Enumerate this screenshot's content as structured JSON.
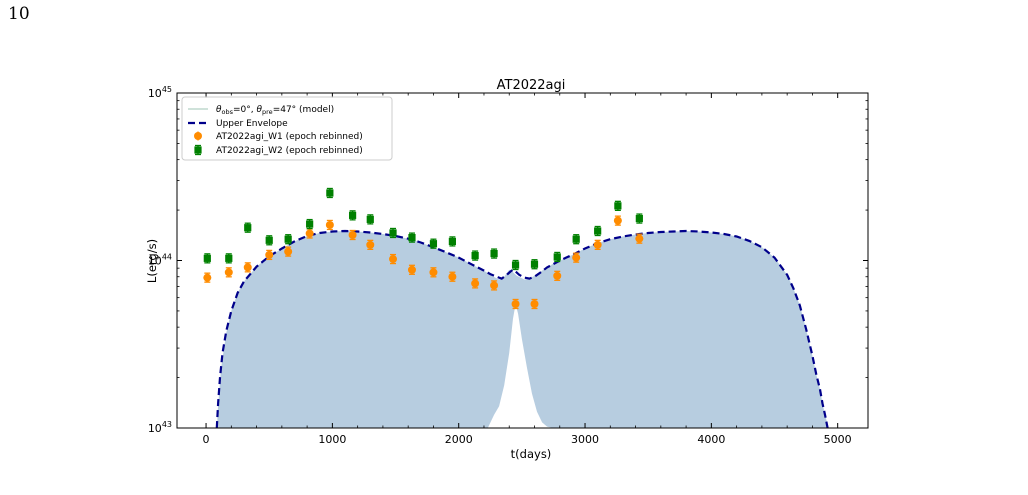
{
  "page": {
    "number": "10"
  },
  "chart_data": {
    "type": "scatter",
    "title": "AT2022agi",
    "xlabel": "t(days)",
    "ylabel": "L(erg/s)",
    "xlim": [
      -230,
      5240
    ],
    "ylim_log10": [
      43,
      45
    ],
    "yscale": "log",
    "x_ticks": [
      0,
      1000,
      2000,
      3000,
      4000,
      5000
    ],
    "x_tick_labels": [
      "0",
      "1000",
      "2000",
      "3000",
      "4000",
      "5000"
    ],
    "y_ticks_log10": [
      43,
      44,
      45
    ],
    "y_tick_base": "10",
    "y_tick_exponents": [
      "43",
      "44",
      "45"
    ],
    "grid": false,
    "legend_position": "top-left",
    "legend": [
      {
        "label": "θobs=0°, θpre=47° (model)",
        "base1": "θ",
        "sub1": "obs",
        "mid": "=0°, ",
        "base2": "θ",
        "sub2": "pre",
        "tail": "=47° (model)"
      },
      {
        "label": "Upper Envelope"
      },
      {
        "label": "AT2022agi_W1 (epoch rebinned)"
      },
      {
        "label": "AT2022agi_W2 (epoch rebinned)"
      }
    ],
    "colors": {
      "model_fill": "#b7cde0",
      "model_line": "#9fc4b5",
      "envelope": "#00008b",
      "w1": "#ff8c00",
      "w2": "#008000"
    },
    "model_band": {
      "x": [
        90,
        120,
        160,
        200,
        250,
        300,
        400,
        500,
        600,
        700,
        800,
        900,
        1000,
        1100,
        1200,
        1300,
        1400,
        1500,
        1600,
        1700,
        1800,
        1900,
        2000,
        2100,
        2200,
        2230,
        2260,
        2290,
        2320,
        2360,
        2400,
        2430,
        2460,
        2490,
        2520,
        2560,
        2600,
        2650,
        2700,
        2750,
        2780,
        2850,
        2900,
        3000,
        3100,
        3200,
        3300,
        3400,
        3500,
        3600,
        3700,
        3800,
        3900,
        4000,
        4100,
        4200,
        4300,
        4400,
        4500,
        4600,
        4650,
        4700,
        4750,
        4800,
        4830,
        4860,
        4880,
        4900,
        4920
      ],
      "y_upper": [
        1.2e+43,
        2.3e+43,
        3.7e+43,
        5e+43,
        6.4e+43,
        7.5e+43,
        9.2e+43,
        1.06e+44,
        1.18e+44,
        1.3e+44,
        1.4e+44,
        1.46e+44,
        1.49e+44,
        1.5e+44,
        1.49e+44,
        1.47e+44,
        1.44e+44,
        1.4e+44,
        1.35e+44,
        1.28e+44,
        1.2e+44,
        1.12e+44,
        1.04e+44,
        9.5e+43,
        8.7e+43,
        8.4e+43,
        8.1e+43,
        7.9e+43,
        7.7e+43,
        8e+43,
        8.8e+43,
        8.5e+43,
        8.1e+43,
        7.9e+43,
        7.7e+43,
        7.8e+43,
        8.1e+43,
        8.6e+43,
        9.1e+43,
        9.6e+43,
        9.8e+43,
        1.04e+44,
        1.08e+44,
        1.18e+44,
        1.27e+44,
        1.34e+44,
        1.39e+44,
        1.43e+44,
        1.46e+44,
        1.48e+44,
        1.49e+44,
        1.5e+44,
        1.49e+44,
        1.47e+44,
        1.44e+44,
        1.39e+44,
        1.31e+44,
        1.2e+44,
        1.04e+44,
        8.2e+43,
        6.8e+43,
        5.4e+43,
        3.9e+43,
        2.7e+43,
        2.1e+43,
        1.7e+43,
        1.4e+43,
        1.2e+43,
        1.05e+43
      ],
      "gap_x": [
        2230,
        2280,
        2320,
        2360,
        2400,
        2430,
        2450,
        2470,
        2500,
        2540,
        2580,
        2620,
        2660,
        2700,
        2750
      ],
      "gap_y": [
        1e+43,
        1.2e+43,
        1.35e+43,
        1.8e+43,
        2.8e+43,
        4.5e+43,
        5.5e+43,
        4.8e+43,
        3.4e+43,
        2.3e+43,
        1.6e+43,
        1.25e+43,
        1.08e+43,
        1.02e+43,
        1e+43
      ]
    },
    "envelope": {
      "x": [
        85,
        95,
        110,
        130,
        160,
        200,
        250,
        300,
        400,
        500,
        600,
        700,
        800,
        900,
        1000,
        1100,
        1200,
        1300,
        1400,
        1500,
        1600,
        1700,
        1800,
        1900,
        2000,
        2100,
        2200,
        2250,
        2300,
        2340,
        2380,
        2410,
        2430,
        2450,
        2480,
        2520,
        2560,
        2600,
        2650,
        2700,
        2780,
        2850,
        2900,
        3000,
        3100,
        3200,
        3300,
        3400,
        3500,
        3600,
        3700,
        3800,
        3900,
        4000,
        4100,
        4200,
        4300,
        4400,
        4500,
        4600,
        4650,
        4700,
        4750,
        4800,
        4830,
        4860,
        4880,
        4900,
        4920
      ],
      "y": [
        1e+43,
        1.4e+43,
        2e+43,
        2.8e+43,
        3.8e+43,
        5e+43,
        6.4e+43,
        7.5e+43,
        9.2e+43,
        1.06e+44,
        1.18e+44,
        1.3e+44,
        1.4e+44,
        1.46e+44,
        1.49e+44,
        1.5e+44,
        1.49e+44,
        1.47e+44,
        1.44e+44,
        1.4e+44,
        1.35e+44,
        1.28e+44,
        1.2e+44,
        1.12e+44,
        1.04e+44,
        9.5e+43,
        8.7e+43,
        8.3e+43,
        8e+43,
        7.8e+43,
        8.2e+43,
        8.6e+43,
        8.8e+43,
        8.6e+43,
        8.2e+43,
        7.9e+43,
        7.8e+43,
        8e+43,
        8.5e+43,
        9.1e+43,
        9.8e+43,
        1.04e+44,
        1.08e+44,
        1.18e+44,
        1.27e+44,
        1.34e+44,
        1.39e+44,
        1.43e+44,
        1.46e+44,
        1.48e+44,
        1.49e+44,
        1.5e+44,
        1.49e+44,
        1.47e+44,
        1.44e+44,
        1.39e+44,
        1.31e+44,
        1.2e+44,
        1.04e+44,
        8.2e+43,
        6.8e+43,
        5.4e+43,
        3.9e+43,
        2.7e+43,
        2.1e+43,
        1.7e+43,
        1.4e+43,
        1.2e+43,
        1e+43
      ]
    },
    "series": [
      {
        "name": "AT2022agi_W1 (epoch rebinned)",
        "marker": "circle",
        "x": [
          10,
          180,
          330,
          500,
          650,
          820,
          980,
          1160,
          1300,
          1480,
          1630,
          1800,
          1950,
          2130,
          2280,
          2450,
          2600,
          2780,
          2930,
          3100,
          3260,
          3430
        ],
        "y": [
          7.9e+43,
          8.5e+43,
          9.1e+43,
          1.08e+44,
          1.13e+44,
          1.45e+44,
          1.63e+44,
          1.42e+44,
          1.24e+44,
          1.02e+44,
          8.8e+43,
          8.5e+43,
          8e+43,
          7.3e+43,
          7.1e+43,
          5.5e+43,
          5.5e+43,
          8.1e+43,
          1.04e+44,
          1.24e+44,
          1.73e+44,
          1.35e+44
        ]
      },
      {
        "name": "AT2022agi_W2 (epoch rebinned)",
        "marker": "square",
        "x": [
          10,
          180,
          330,
          500,
          650,
          820,
          980,
          1160,
          1300,
          1480,
          1630,
          1800,
          1950,
          2130,
          2280,
          2450,
          2600,
          2780,
          2930,
          3100,
          3260,
          3430
        ],
        "y": [
          1.03e+44,
          1.03e+44,
          1.57e+44,
          1.32e+44,
          1.34e+44,
          1.65e+44,
          2.53e+44,
          1.86e+44,
          1.76e+44,
          1.46e+44,
          1.37e+44,
          1.26e+44,
          1.3e+44,
          1.07e+44,
          1.1e+44,
          9.4e+43,
          9.5e+43,
          1.05e+44,
          1.34e+44,
          1.5e+44,
          2.12e+44,
          1.78e+44
        ]
      }
    ]
  }
}
